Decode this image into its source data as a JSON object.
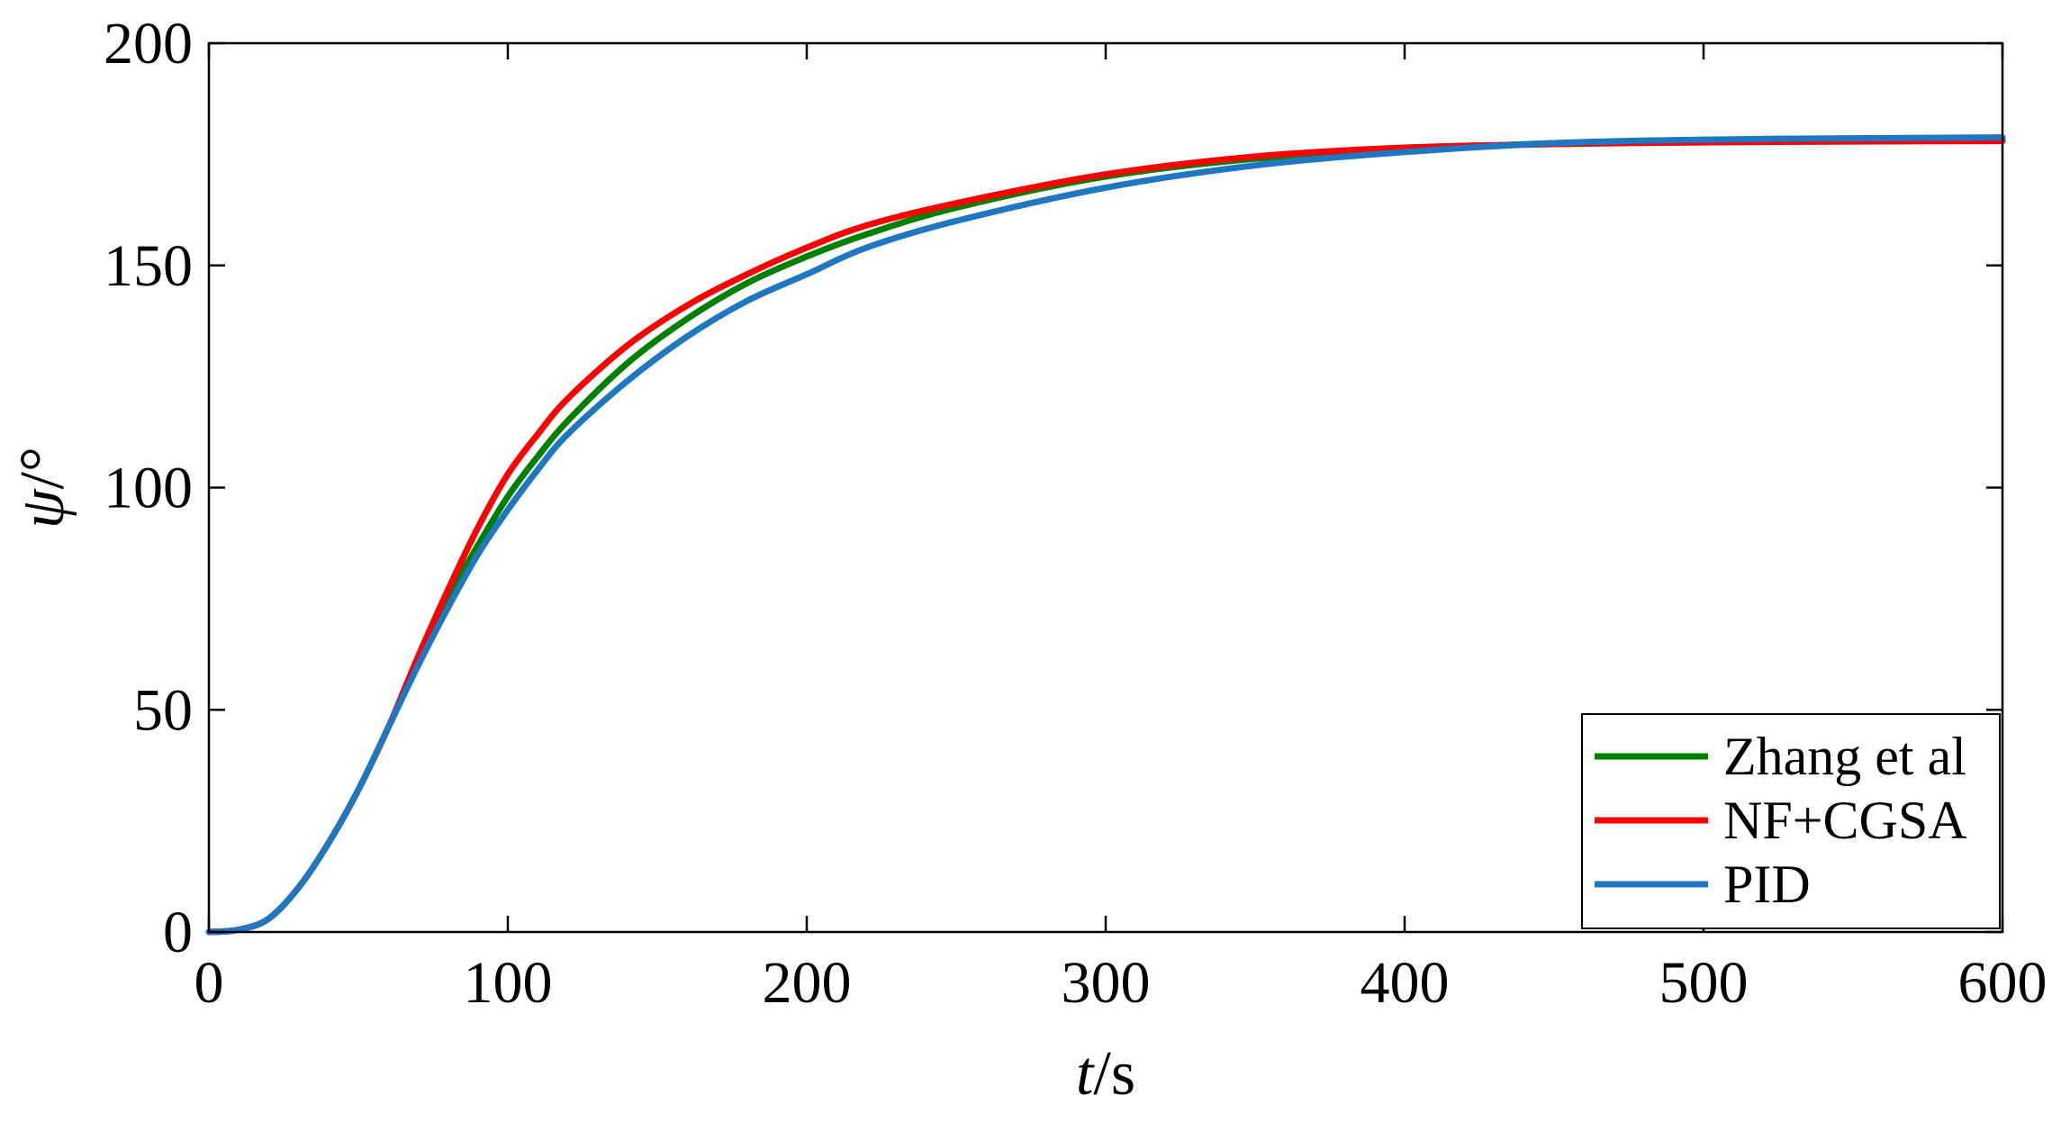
{
  "chart_data": {
    "type": "line",
    "title": "",
    "xlabel_var": "t",
    "xlabel_unit": "/s",
    "ylabel_var": "ψ",
    "ylabel_unit": "/°",
    "xlim": [
      0,
      600
    ],
    "ylim": [
      0,
      200
    ],
    "xticks": [
      0,
      100,
      200,
      300,
      400,
      500,
      600
    ],
    "yticks": [
      0,
      50,
      100,
      150,
      200
    ],
    "grid": false,
    "legend_position": "bottom-right",
    "x": [
      0,
      10,
      20,
      30,
      40,
      50,
      60,
      70,
      80,
      90,
      100,
      110,
      120,
      140,
      160,
      180,
      200,
      220,
      250,
      300,
      350,
      400,
      450,
      500,
      550,
      600
    ],
    "series": [
      {
        "name": "Zhang et al",
        "color": "#008000",
        "values": [
          0,
          0.5,
          3,
          10,
          20,
          32,
          46,
          61,
          75,
          87,
          98,
          107,
          115,
          128,
          138,
          146,
          152,
          157,
          163,
          170,
          174,
          176,
          177.5,
          178,
          178.3,
          178.5
        ]
      },
      {
        "name": "NF+CGSA",
        "color": "#ff0000",
        "values": [
          0,
          0.5,
          3,
          10,
          20,
          32,
          46,
          62,
          77,
          91,
          103,
          112,
          120,
          132,
          141,
          148,
          154,
          159,
          164,
          170.5,
          174.5,
          176.5,
          177.3,
          177.7,
          177.9,
          178
        ]
      },
      {
        "name": "PID",
        "color": "#1f77c2",
        "values": [
          0,
          0.5,
          3,
          10,
          20,
          32,
          46,
          60,
          73,
          85,
          95,
          104,
          112,
          124,
          134,
          142,
          148,
          154,
          160,
          167.5,
          172.5,
          175.5,
          177.5,
          178.3,
          178.6,
          178.8
        ]
      }
    ]
  }
}
